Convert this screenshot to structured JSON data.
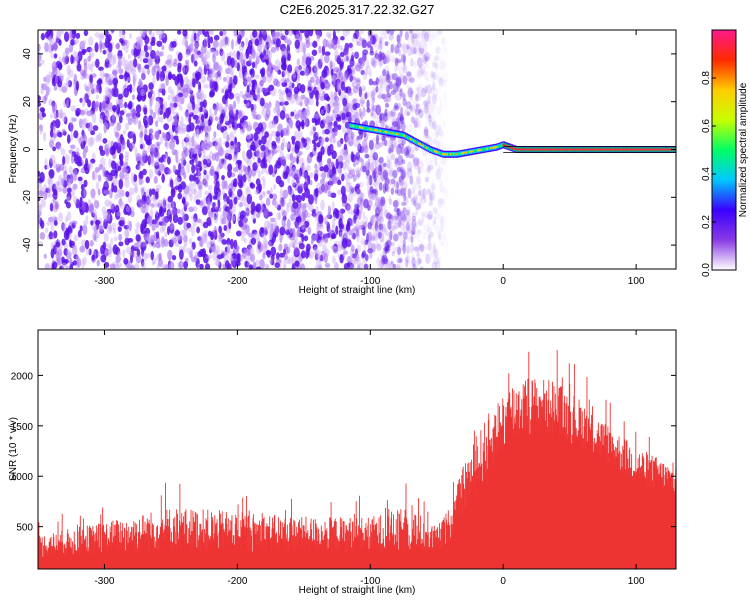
{
  "title": "C2E6.2025.317.22.32.G27",
  "chart_data": [
    {
      "type": "heatmap",
      "xlabel": "Height of straight line (km)",
      "ylabel": "Frequency (Hz)",
      "xlim": [
        -350,
        130
      ],
      "ylim": [
        -50,
        50
      ],
      "xticks": [
        -300,
        -200,
        -100,
        0,
        100
      ],
      "yticks": [
        -40,
        -20,
        0,
        20,
        40
      ],
      "noise_region": {
        "x": [
          -350,
          -50
        ],
        "y": [
          -50,
          50
        ]
      },
      "ridge": {
        "x": [
          -115,
          -105,
          -95,
          -85,
          -75,
          -65,
          -55,
          -45,
          -35,
          -25,
          -15,
          -5,
          0,
          10,
          30,
          60,
          100,
          130
        ],
        "y": [
          10,
          9,
          8,
          7,
          6,
          3,
          0,
          -2,
          -2,
          -1,
          0,
          1,
          2,
          0,
          0,
          0,
          0,
          0
        ]
      },
      "colorbar": {
        "label": "Normalized spectral amplitude",
        "range": [
          0,
          1
        ],
        "ticks": [
          0.0,
          0.2,
          0.4,
          0.6,
          0.8
        ],
        "colors": [
          "#ffffff",
          "#8a3be6",
          "#3a00ff",
          "#00c8ff",
          "#00ff66",
          "#c8ff00",
          "#ffcc00",
          "#ff2a00",
          "#ff1a8c"
        ]
      },
      "grid": false
    },
    {
      "type": "line",
      "xlabel": "Height of straight line (km)",
      "ylabel": "SNR (10 * v/v)",
      "xlim": [
        -350,
        130
      ],
      "ylim": [
        80,
        2450
      ],
      "xticks": [
        -300,
        -200,
        -100,
        0,
        100
      ],
      "yticks": [
        500,
        1000,
        1500,
        2000
      ],
      "series": [
        {
          "color": "#ee3333",
          "envelope": {
            "x": [
              -350,
              -300,
              -250,
              -200,
              -150,
              -100,
              -70,
              -50,
              -40,
              -30,
              -20,
              -10,
              0,
              10,
              20,
              40,
              60,
              80,
              100,
              130
            ],
            "low": [
              180,
              230,
              250,
              250,
              240,
              230,
              220,
              200,
              350,
              600,
              800,
              1000,
              1200,
              1350,
              1400,
              1400,
              1250,
              1100,
              900,
              800
            ],
            "high": [
              420,
              550,
              700,
              650,
              600,
              600,
              700,
              500,
              700,
              1100,
              1400,
              1650,
              1850,
              2000,
              2000,
              1950,
              1750,
              1500,
              1300,
              1100
            ]
          }
        }
      ],
      "grid": false
    }
  ]
}
